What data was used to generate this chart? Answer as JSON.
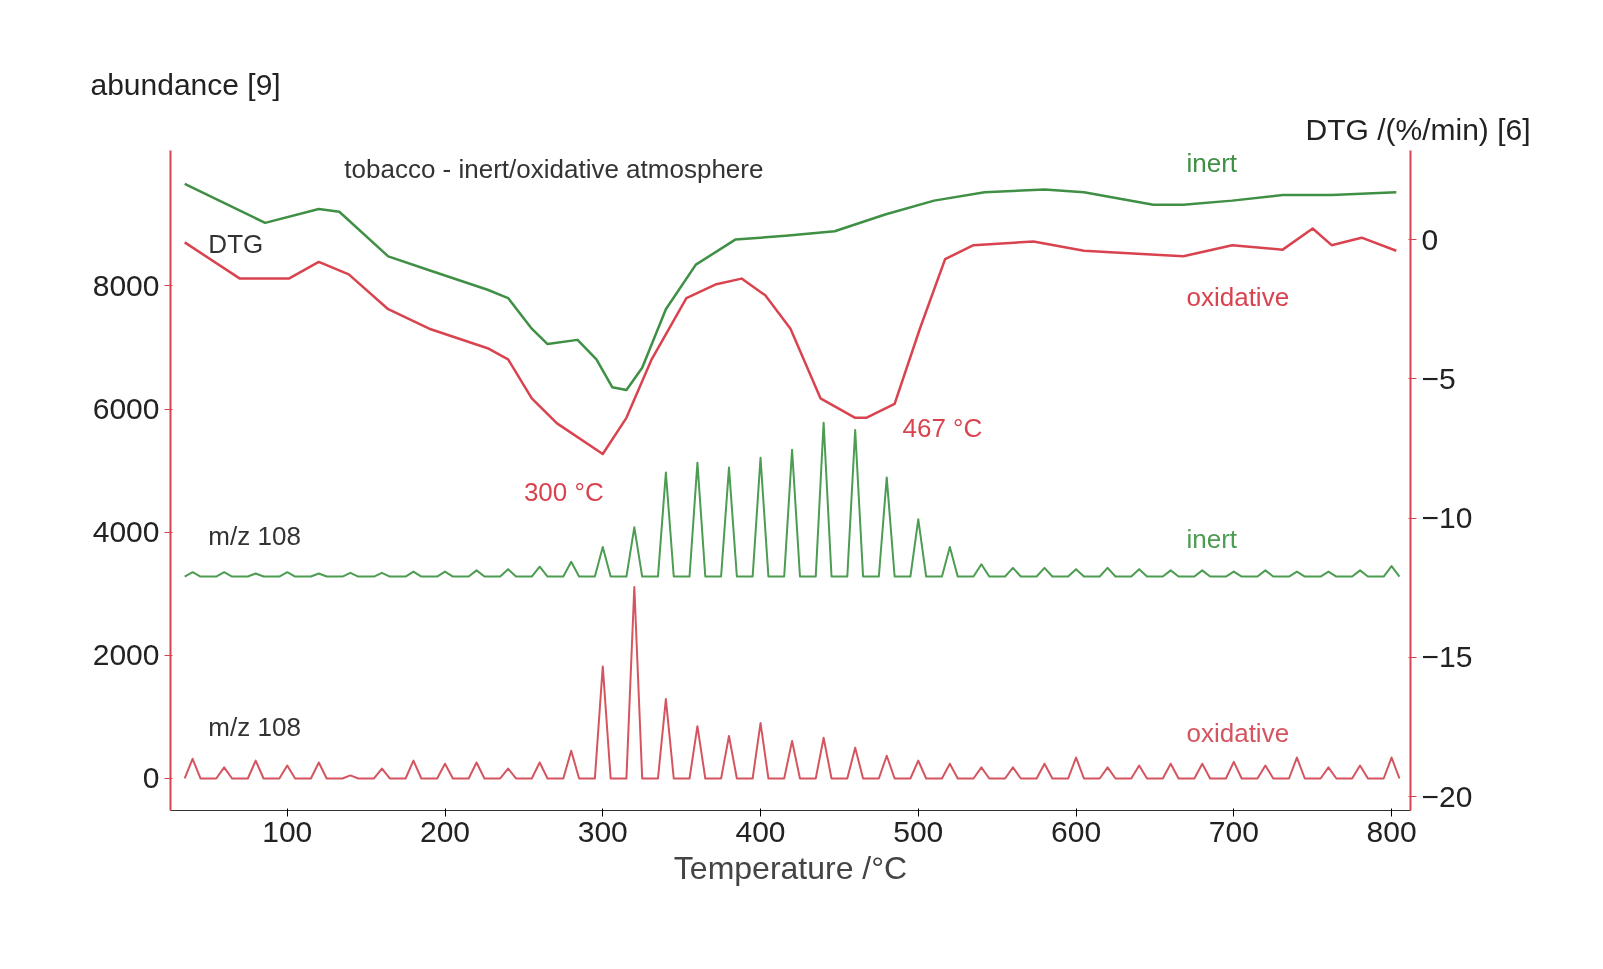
{
  "chart_data": {
    "type": "line",
    "title": "tobacco - inert/oxidative atmosphere",
    "xlabel": "Temperature /°C",
    "ylabel": "abundance [9]",
    "y2label": "DTG /(%/min) [6]",
    "xlim": [
      26,
      812
    ],
    "xticks": [
      100,
      200,
      300,
      400,
      500,
      600,
      700,
      800
    ],
    "ylim": [
      -520,
      10200
    ],
    "yticks": [
      0,
      2000,
      4000,
      6000,
      8000
    ],
    "y2lim": [
      -20.5,
      3.2
    ],
    "y2ticks": [
      0,
      -5,
      -10,
      -15,
      -20
    ],
    "grid": false,
    "marker": "none",
    "line_style": "solid",
    "annotations": [
      "DTG",
      "m/z 108",
      "m/z 108",
      "300 °C",
      "467 °C"
    ],
    "series": [
      {
        "name": "inert",
        "color": "#3f8f45",
        "axis": "y2",
        "x": [
          35,
          86,
          120,
          133,
          164,
          190,
          227,
          240,
          255,
          265,
          284,
          296,
          306,
          315,
          325,
          340,
          359,
          384,
          416,
          447,
          479,
          510,
          542,
          580,
          605,
          649,
          668,
          699,
          731,
          762,
          803
        ],
        "values": [
          2.0,
          0.6,
          1.1,
          1.0,
          -0.6,
          -1.1,
          -1.8,
          -2.1,
          -3.2,
          -3.75,
          -3.6,
          -4.3,
          -5.3,
          -5.4,
          -4.6,
          -2.5,
          -0.9,
          0.0,
          0.14,
          0.3,
          0.9,
          1.4,
          1.7,
          1.8,
          1.7,
          1.25,
          1.25,
          1.4,
          1.6,
          1.6,
          1.7
        ]
      },
      {
        "name": "oxidative",
        "color": "#d9434f",
        "axis": "y2",
        "x": [
          35,
          70,
          101,
          120,
          139,
          164,
          190,
          227,
          240,
          255,
          271,
          300,
          315,
          331,
          353,
          372,
          388,
          403,
          419,
          438,
          460,
          467,
          485,
          501,
          517,
          535,
          573,
          605,
          636,
          668,
          699,
          731,
          750,
          762,
          781,
          803
        ],
        "values": [
          -0.1,
          -1.4,
          -1.4,
          -0.8,
          -1.25,
          -2.5,
          -3.2,
          -3.9,
          -4.3,
          -5.7,
          -6.6,
          -7.7,
          -6.4,
          -4.3,
          -2.1,
          -1.6,
          -1.4,
          -2.0,
          -3.2,
          -5.7,
          -6.4,
          -6.4,
          -5.9,
          -3.2,
          -0.7,
          -0.2,
          -0.07,
          -0.4,
          -0.5,
          -0.6,
          -0.2,
          -0.36,
          0.4,
          -0.2,
          0.07,
          -0.4
        ]
      },
      {
        "name": "inert",
        "color": "#4c9c52",
        "x": [
          35,
          40,
          45,
          55,
          60,
          65,
          75,
          80,
          85,
          95,
          100,
          105,
          115,
          120,
          125,
          135,
          140,
          145,
          155,
          160,
          165,
          175,
          180,
          185,
          195,
          200,
          205,
          215,
          220,
          225,
          235,
          240,
          245,
          255,
          260,
          265,
          275,
          280,
          285,
          295,
          300,
          305,
          315,
          320,
          325,
          335,
          340,
          345,
          355,
          360,
          365,
          375,
          380,
          385,
          395,
          400,
          405,
          415,
          420,
          425,
          435,
          440,
          445,
          455,
          460,
          465,
          475,
          480,
          485,
          495,
          500,
          505,
          515,
          520,
          525,
          535,
          540,
          545,
          555,
          560,
          565,
          575,
          580,
          585,
          595,
          600,
          605,
          615,
          620,
          625,
          635,
          640,
          645,
          655,
          660,
          665,
          675,
          680,
          685,
          695,
          700,
          705,
          715,
          720,
          725,
          735,
          740,
          745,
          755,
          760,
          765,
          775,
          780,
          785,
          795,
          800,
          805
        ],
        "values": [
          3280,
          3350,
          3280,
          3280,
          3350,
          3280,
          3280,
          3330,
          3280,
          3280,
          3350,
          3280,
          3280,
          3330,
          3280,
          3280,
          3340,
          3280,
          3280,
          3340,
          3280,
          3280,
          3360,
          3280,
          3280,
          3360,
          3280,
          3280,
          3380,
          3280,
          3280,
          3400,
          3280,
          3280,
          3440,
          3280,
          3280,
          3520,
          3280,
          3280,
          3760,
          3280,
          3280,
          4080,
          3280,
          3280,
          4970,
          3280,
          3280,
          5130,
          3280,
          3280,
          5050,
          3280,
          3280,
          5210,
          3280,
          3280,
          5340,
          3280,
          3280,
          5780,
          3280,
          3280,
          5660,
          3280,
          3280,
          4890,
          3280,
          3280,
          4210,
          3280,
          3280,
          3760,
          3280,
          3280,
          3480,
          3280,
          3280,
          3420,
          3280,
          3280,
          3420,
          3280,
          3280,
          3400,
          3280,
          3280,
          3420,
          3280,
          3280,
          3400,
          3280,
          3280,
          3380,
          3280,
          3280,
          3380,
          3280,
          3280,
          3360,
          3280,
          3280,
          3380,
          3280,
          3280,
          3360,
          3280,
          3280,
          3360,
          3280,
          3280,
          3380,
          3280,
          3280,
          3450,
          3280
        ]
      },
      {
        "name": "oxidative",
        "color": "#d45560",
        "x": [
          35,
          40,
          45,
          55,
          60,
          65,
          75,
          80,
          85,
          95,
          100,
          105,
          115,
          120,
          125,
          135,
          140,
          145,
          155,
          160,
          165,
          175,
          180,
          185,
          195,
          200,
          205,
          215,
          220,
          225,
          235,
          240,
          245,
          255,
          260,
          265,
          275,
          280,
          285,
          295,
          300,
          305,
          315,
          320,
          325,
          335,
          340,
          345,
          355,
          360,
          365,
          375,
          380,
          385,
          395,
          400,
          405,
          415,
          420,
          425,
          435,
          440,
          445,
          455,
          460,
          465,
          475,
          480,
          485,
          495,
          500,
          505,
          515,
          520,
          525,
          535,
          540,
          545,
          555,
          560,
          565,
          575,
          580,
          585,
          595,
          600,
          605,
          615,
          620,
          625,
          635,
          640,
          645,
          655,
          660,
          665,
          675,
          680,
          685,
          695,
          700,
          705,
          715,
          720,
          725,
          735,
          740,
          745,
          755,
          760,
          765,
          775,
          780,
          785,
          795,
          800,
          805
        ],
        "values": [
          0,
          320,
          0,
          0,
          180,
          0,
          0,
          290,
          0,
          0,
          210,
          0,
          0,
          260,
          0,
          0,
          50,
          0,
          0,
          160,
          0,
          0,
          290,
          0,
          0,
          240,
          0,
          0,
          260,
          0,
          0,
          160,
          0,
          0,
          260,
          0,
          0,
          450,
          0,
          0,
          1820,
          0,
          0,
          3110,
          0,
          0,
          1290,
          0,
          0,
          850,
          0,
          0,
          690,
          0,
          0,
          900,
          0,
          0,
          610,
          0,
          0,
          660,
          0,
          0,
          500,
          0,
          0,
          370,
          0,
          0,
          290,
          0,
          0,
          240,
          0,
          0,
          180,
          0,
          0,
          180,
          0,
          0,
          240,
          0,
          0,
          340,
          0,
          0,
          180,
          0,
          0,
          210,
          0,
          0,
          240,
          0,
          0,
          240,
          0,
          0,
          270,
          0,
          0,
          210,
          0,
          0,
          340,
          0,
          0,
          180,
          0,
          0,
          210,
          0,
          0,
          340,
          0
        ]
      }
    ]
  }
}
